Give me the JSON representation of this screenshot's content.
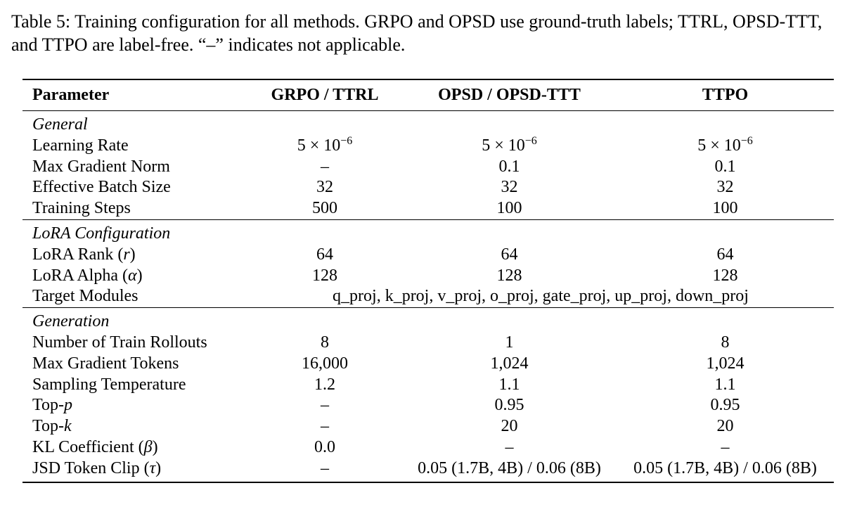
{
  "caption": "Table 5: Training configuration for all methods. GRPO and OPSD use ground-truth labels; TTRL, OPSD-TTT, and TTPO are label-free. “–” indicates not applicable.",
  "table": {
    "headers": [
      "Parameter",
      "GRPO / TTRL",
      "OPSD / OPSD-TTT",
      "TTPO"
    ],
    "sections": {
      "general": {
        "title": "General",
        "rows": {
          "lr": [
            "Learning Rate",
            "5 × 10",
            "−6",
            "5 × 10",
            "−6",
            "5 × 10",
            "−6"
          ],
          "grad_norm": [
            "Max Gradient Norm",
            "–",
            "0.1",
            "0.1"
          ],
          "batch": [
            "Effective Batch Size",
            "32",
            "32",
            "32"
          ],
          "steps": [
            "Training Steps",
            "500",
            "100",
            "100"
          ]
        }
      },
      "lora": {
        "title": "LoRA Configuration",
        "rows": {
          "rank": {
            "label": "LoRA Rank (",
            "sym": "r",
            "close": ")",
            "values": [
              "64",
              "64",
              "64"
            ]
          },
          "alpha": {
            "label": "LoRA Alpha (",
            "sym": "α",
            "close": ")",
            "values": [
              "128",
              "128",
              "128"
            ]
          },
          "modules": {
            "label": "Target Modules",
            "value": "q_proj, k_proj, v_proj, o_proj, gate_proj, up_proj, down_proj"
          }
        }
      },
      "generation": {
        "title": "Generation",
        "rows": {
          "rollouts": [
            "Number of Train Rollouts",
            "8",
            "1",
            "8"
          ],
          "max_tokens": [
            "Max Gradient Tokens",
            "16,000",
            "1,024",
            "1,024"
          ],
          "temp": [
            "Sampling Temperature",
            "1.2",
            "1.1",
            "1.1"
          ],
          "top_p": {
            "label": "Top-",
            "sym": "p",
            "values": [
              "–",
              "0.95",
              "0.95"
            ]
          },
          "top_k": {
            "label": "Top-",
            "sym": "k",
            "values": [
              "–",
              "20",
              "20"
            ]
          },
          "kl": {
            "label": "KL Coefficient (",
            "sym": "β",
            "close": ")",
            "values": [
              "0.0",
              "–",
              "–"
            ]
          },
          "jsd": {
            "label": "JSD Token Clip (",
            "sym": "τ",
            "close": ")",
            "values": [
              "–",
              "0.05 (1.7B, 4B) / 0.06 (8B)",
              "0.05 (1.7B, 4B) / 0.06 (8B)"
            ]
          }
        }
      }
    }
  }
}
